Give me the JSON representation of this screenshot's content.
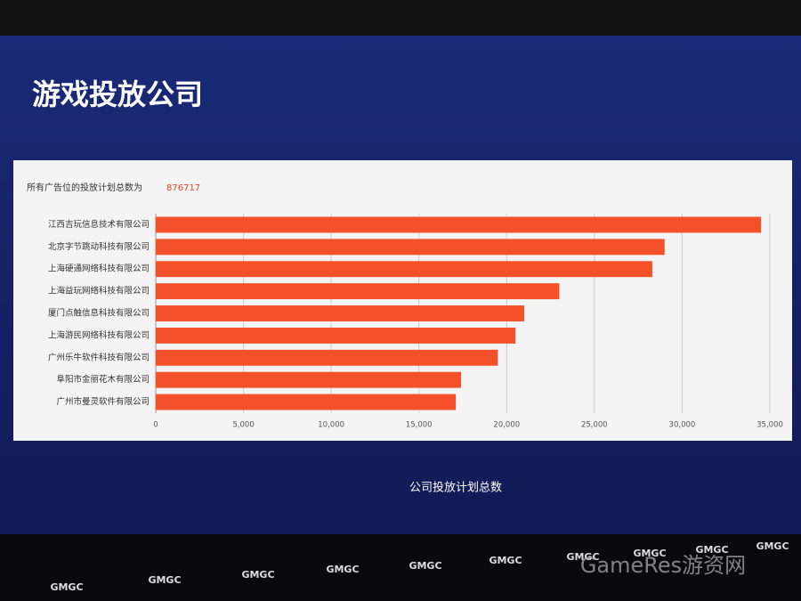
{
  "title": "游戏投放公司",
  "chart_data": {
    "type": "bar",
    "orientation": "horizontal",
    "subtitle": "所有广告位的投放计划总数为",
    "subtitle_value": 876717,
    "xlabel": "公司投放计划总数",
    "categories": [
      "江西吉玩信息技术有限公司",
      "北京字节跳动科技有限公司",
      "上海硬通网络科技有限公司",
      "上海益玩网络科技有限公司",
      "厦门点触信息科技有限公司",
      "上海游民网络科技有限公司",
      "广州乐牛软件科技有限公司",
      "阜阳市金丽花木有限公司",
      "广州市曼灵软件有限公司"
    ],
    "values": [
      34500,
      29000,
      28300,
      23000,
      21000,
      20500,
      19500,
      17400,
      17100
    ],
    "color": "#f4502a",
    "xlim": [
      0,
      35000
    ],
    "xticks": [
      0,
      {
        "value": 5000,
        "label": "5,000"
      },
      {
        "value": 10000,
        "label": "10,000"
      },
      {
        "value": 15000,
        "label": "15,000"
      },
      {
        "value": 20000,
        "label": "20,000"
      },
      {
        "value": 25000,
        "label": "25,000"
      },
      {
        "value": 30000,
        "label": "30,000"
      },
      {
        "value": 35000,
        "label": "35,000"
      }
    ],
    "grid": true
  },
  "logo_text": "GMGC",
  "watermark": "GameRes游资网"
}
